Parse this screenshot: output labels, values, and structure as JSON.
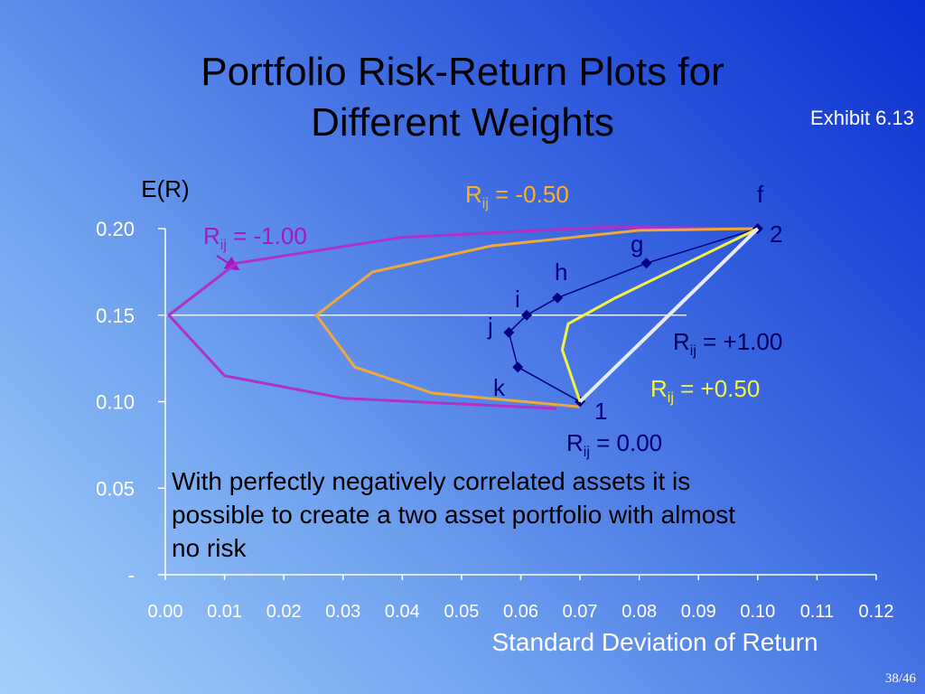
{
  "chart_data": {
    "type": "line",
    "title": "Portfolio Risk-Return Plots for Different Weights",
    "note": "Exhibit 6.13",
    "y_label": "E(R)",
    "x_label": "Standard Deviation of Return",
    "annotation": "With perfectly negatively correlated assets it is possible to create a two asset portfolio with almost no risk",
    "page": "38/46",
    "xlim": [
      0,
      0.12
    ],
    "ylim": [
      0,
      0.2
    ],
    "xticks": [
      {
        "value": 0,
        "label": "0.00"
      },
      {
        "value": 0.01,
        "label": "0.01"
      },
      {
        "value": 0.02,
        "label": "0.02"
      },
      {
        "value": 0.03,
        "label": "0.03"
      },
      {
        "value": 0.04,
        "label": "0.04"
      },
      {
        "value": 0.05,
        "label": "0.05"
      },
      {
        "value": 0.06,
        "label": "0.06"
      },
      {
        "value": 0.07,
        "label": "0.07"
      },
      {
        "value": 0.08,
        "label": "0.08"
      },
      {
        "value": 0.09,
        "label": "0.09"
      },
      {
        "value": 0.1,
        "label": "0.10"
      },
      {
        "value": 0.11,
        "label": "0.11"
      },
      {
        "value": 0.12,
        "label": "0.12"
      }
    ],
    "yticks": [
      {
        "value": 0,
        "label": "-"
      },
      {
        "value": 0.05,
        "label": "0.05"
      },
      {
        "value": 0.1,
        "label": "0.10"
      },
      {
        "value": 0.15,
        "label": "0.15"
      },
      {
        "value": 0.2,
        "label": "0.20"
      }
    ],
    "reference_line_y": 0.15,
    "series": [
      {
        "name_parts": [
          "R",
          "ij",
          " = -1.00"
        ],
        "color": "#b030c8",
        "label_color": "#a418c0",
        "x": [
          0.066,
          0.03,
          0.01,
          0.0006,
          0.012,
          0.04,
          0.075,
          0.1
        ],
        "y": [
          0.096,
          0.102,
          0.115,
          0.15,
          0.18,
          0.195,
          0.201,
          0.2
        ]
      },
      {
        "name_parts": [
          "R",
          "ij",
          " = -0.50"
        ],
        "color": "#f0a838",
        "label_color": "#ffb020",
        "x": [
          0.07,
          0.045,
          0.032,
          0.0255,
          0.035,
          0.055,
          0.08,
          0.1
        ],
        "y": [
          0.097,
          0.105,
          0.12,
          0.15,
          0.175,
          0.19,
          0.199,
          0.2
        ]
      },
      {
        "name_parts": [
          "R",
          "ij",
          " = 0.00"
        ],
        "color": "#000080",
        "label_color": "#000070",
        "markers": true,
        "x": [
          0.07,
          0.0595,
          0.058,
          0.061,
          0.0662,
          0.0812,
          0.1
        ],
        "y": [
          0.1,
          0.12,
          0.14,
          0.15,
          0.16,
          0.18,
          0.2
        ],
        "point_labels": [
          "1",
          "k",
          "j",
          "i",
          "h",
          "g",
          "f"
        ]
      },
      {
        "name_parts": [
          "R",
          "ij",
          " = +0.50"
        ],
        "color": "#f4f440",
        "label_color": "#f4f440",
        "x": [
          0.07,
          0.067,
          0.068,
          0.076,
          0.088,
          0.1
        ],
        "y": [
          0.1,
          0.13,
          0.145,
          0.16,
          0.18,
          0.2
        ]
      },
      {
        "name_parts": [
          "R",
          "ij",
          " = +1.00"
        ],
        "color": "#e8eaf4",
        "label_color": "#00005a",
        "x": [
          0.07,
          0.1
        ],
        "y": [
          0.1,
          0.2
        ]
      }
    ],
    "asset_label": "2"
  }
}
